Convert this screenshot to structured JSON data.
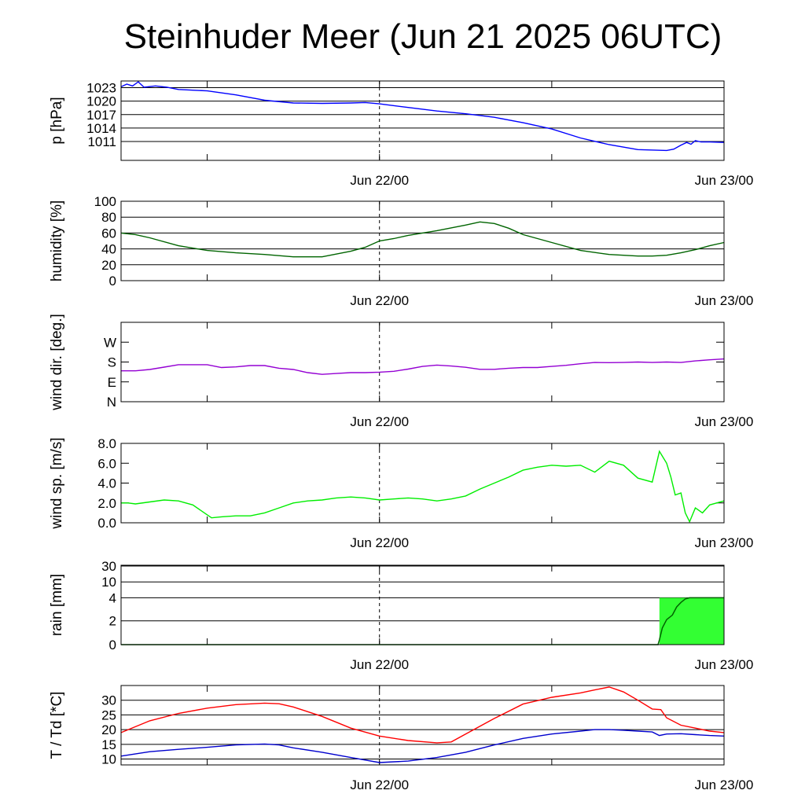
{
  "title": "Steinhuder Meer (Jun 21 2025 06UTC)",
  "x_axis": {
    "range_hours": [
      0,
      42
    ],
    "ticks": [
      {
        "hour": 6,
        "label": ""
      },
      {
        "hour": 18,
        "label": "Jun 22/00"
      },
      {
        "hour": 30,
        "label": ""
      },
      {
        "hour": 42,
        "label": "Jun 23/00"
      }
    ],
    "dashed_marker_hour": 18
  },
  "chart_data": [
    {
      "type": "line",
      "ylabel": "p [hPa]",
      "ylim": [
        1006.8,
        1024.5
      ],
      "ticks": [
        {
          "v": 1011,
          "label": "1011"
        },
        {
          "v": 1014,
          "label": "1014"
        },
        {
          "v": 1017,
          "label": "1017"
        },
        {
          "v": 1020,
          "label": "1020"
        },
        {
          "v": 1023,
          "label": "1023"
        }
      ],
      "grid": true,
      "series": [
        {
          "color": "#0000ff",
          "points": [
            [
              0,
              1023.2
            ],
            [
              0.4,
              1023.8
            ],
            [
              0.8,
              1023.4
            ],
            [
              1.2,
              1024.3
            ],
            [
              1.6,
              1023.1
            ],
            [
              2.4,
              1023.4
            ],
            [
              3.2,
              1023.1
            ],
            [
              4,
              1022.6
            ],
            [
              6,
              1022.3
            ],
            [
              8,
              1021.4
            ],
            [
              10,
              1020.2
            ],
            [
              12,
              1019.6
            ],
            [
              14,
              1019.5
            ],
            [
              16,
              1019.6
            ],
            [
              17,
              1019.7
            ],
            [
              18,
              1019.4
            ],
            [
              20,
              1018.6
            ],
            [
              22,
              1017.8
            ],
            [
              24,
              1017.2
            ],
            [
              26,
              1016.4
            ],
            [
              28,
              1015.2
            ],
            [
              30,
              1013.8
            ],
            [
              32,
              1011.8
            ],
            [
              34,
              1010.3
            ],
            [
              36,
              1009.2
            ],
            [
              38,
              1009.0
            ],
            [
              38.5,
              1009.3
            ],
            [
              39,
              1010.2
            ],
            [
              39.4,
              1010.8
            ],
            [
              39.7,
              1010.4
            ],
            [
              40,
              1011.2
            ],
            [
              40.4,
              1010.9
            ],
            [
              41,
              1010.9
            ],
            [
              42,
              1010.8
            ]
          ]
        }
      ]
    },
    {
      "type": "line",
      "ylabel": "humidity [%]",
      "ylim": [
        0,
        100
      ],
      "ticks": [
        {
          "v": 0,
          "label": "0"
        },
        {
          "v": 20,
          "label": "20"
        },
        {
          "v": 40,
          "label": "40"
        },
        {
          "v": 60,
          "label": "60"
        },
        {
          "v": 80,
          "label": "80"
        },
        {
          "v": 100,
          "label": "100"
        }
      ],
      "grid": true,
      "series": [
        {
          "color": "#006400",
          "points": [
            [
              0,
              60
            ],
            [
              1,
              58
            ],
            [
              2,
              54
            ],
            [
              4,
              44
            ],
            [
              6,
              38
            ],
            [
              8,
              35
            ],
            [
              10,
              33
            ],
            [
              12,
              30
            ],
            [
              14,
              30
            ],
            [
              16,
              37
            ],
            [
              17,
              42
            ],
            [
              18,
              50
            ],
            [
              19,
              53
            ],
            [
              20,
              57
            ],
            [
              22,
              63
            ],
            [
              24,
              70
            ],
            [
              25,
              74
            ],
            [
              26,
              72
            ],
            [
              27,
              66
            ],
            [
              28,
              58
            ],
            [
              30,
              48
            ],
            [
              32,
              38
            ],
            [
              34,
              33
            ],
            [
              36,
              31
            ],
            [
              37,
              31
            ],
            [
              38,
              32
            ],
            [
              39,
              35
            ],
            [
              40,
              39
            ],
            [
              41,
              44
            ],
            [
              42,
              48
            ],
            [
              42,
              48
            ]
          ]
        }
      ]
    },
    {
      "type": "line",
      "ylabel": "wind dir. [deg.]",
      "ylim": [
        0,
        360
      ],
      "ticks": [
        {
          "v": 0,
          "label": "N"
        },
        {
          "v": 90,
          "label": "E"
        },
        {
          "v": 180,
          "label": "S"
        },
        {
          "v": 270,
          "label": "W"
        }
      ],
      "grid": false,
      "series": [
        {
          "color": "#9400d3",
          "points": [
            [
              0,
              140
            ],
            [
              1,
              140
            ],
            [
              2,
              146
            ],
            [
              3,
              157
            ],
            [
              4,
              168
            ],
            [
              5,
              168
            ],
            [
              6,
              168
            ],
            [
              7,
              155
            ],
            [
              8,
              158
            ],
            [
              9,
              164
            ],
            [
              10,
              164
            ],
            [
              11,
              152
            ],
            [
              12,
              146
            ],
            [
              13,
              132
            ],
            [
              14,
              124
            ],
            [
              15,
              128
            ],
            [
              16,
              132
            ],
            [
              17,
              132
            ],
            [
              18,
              134
            ],
            [
              19,
              138
            ],
            [
              20,
              148
            ],
            [
              21,
              160
            ],
            [
              22,
              166
            ],
            [
              23,
              162
            ],
            [
              24,
              156
            ],
            [
              25,
              147
            ],
            [
              26,
              147
            ],
            [
              27,
              152
            ],
            [
              28,
              155
            ],
            [
              29,
              155
            ],
            [
              30,
              160
            ],
            [
              31,
              165
            ],
            [
              32,
              172
            ],
            [
              33,
              178
            ],
            [
              34,
              177
            ],
            [
              35,
              178
            ],
            [
              36,
              180
            ],
            [
              37,
              178
            ],
            [
              38,
              180
            ],
            [
              39,
              178
            ],
            [
              40,
              185
            ],
            [
              41,
              190
            ],
            [
              42,
              194
            ]
          ]
        }
      ]
    },
    {
      "type": "line",
      "ylabel": "wind sp. [m/s]",
      "ylim": [
        0,
        8.0
      ],
      "ticks": [
        {
          "v": 0,
          "label": "0.0"
        },
        {
          "v": 2,
          "label": "2.0"
        },
        {
          "v": 4,
          "label": "4.0"
        },
        {
          "v": 6,
          "label": "6.0"
        },
        {
          "v": 8,
          "label": "8.0"
        }
      ],
      "grid": false,
      "series": [
        {
          "color": "#00ee00",
          "points": [
            [
              0,
              2.0
            ],
            [
              0.5,
              2.0
            ],
            [
              1,
              1.9
            ],
            [
              2,
              2.1
            ],
            [
              3,
              2.3
            ],
            [
              4,
              2.2
            ],
            [
              5,
              1.8
            ],
            [
              6,
              0.8
            ],
            [
              6.3,
              0.5
            ],
            [
              7,
              0.6
            ],
            [
              8,
              0.7
            ],
            [
              9,
              0.7
            ],
            [
              10,
              1.0
            ],
            [
              11,
              1.5
            ],
            [
              12,
              2.0
            ],
            [
              13,
              2.2
            ],
            [
              14,
              2.3
            ],
            [
              15,
              2.5
            ],
            [
              16,
              2.6
            ],
            [
              17,
              2.5
            ],
            [
              18,
              2.3
            ],
            [
              19,
              2.4
            ],
            [
              20,
              2.5
            ],
            [
              21,
              2.4
            ],
            [
              22,
              2.2
            ],
            [
              23,
              2.4
            ],
            [
              24,
              2.7
            ],
            [
              25,
              3.4
            ],
            [
              26,
              4.0
            ],
            [
              27,
              4.6
            ],
            [
              28,
              5.3
            ],
            [
              29,
              5.6
            ],
            [
              30,
              5.8
            ],
            [
              31,
              5.7
            ],
            [
              32,
              5.8
            ],
            [
              33,
              5.1
            ],
            [
              34,
              6.2
            ],
            [
              35,
              5.8
            ],
            [
              36,
              4.5
            ],
            [
              37,
              4.1
            ],
            [
              37.5,
              7.2
            ],
            [
              38,
              6.0
            ],
            [
              38.3,
              4.6
            ],
            [
              38.6,
              2.8
            ],
            [
              39,
              3.0
            ],
            [
              39.3,
              1.0
            ],
            [
              39.6,
              0.1
            ],
            [
              40,
              1.5
            ],
            [
              40.5,
              1.0
            ],
            [
              41,
              1.8
            ],
            [
              42,
              2.2
            ]
          ]
        }
      ]
    },
    {
      "type": "area",
      "ylabel": "rain [mm]",
      "ticks": [
        {
          "v": 0,
          "label": "0"
        },
        {
          "v": 2,
          "label": "2"
        },
        {
          "v": 4,
          "label": "4"
        },
        {
          "v": 10,
          "label": "10"
        },
        {
          "v": 30,
          "label": "30"
        }
      ],
      "grid": true,
      "series": [
        {
          "color": "#33ff33",
          "fill_start_hour": 37.5,
          "points": [
            [
              0,
              0
            ],
            [
              37.4,
              0
            ],
            [
              37.5,
              0.4
            ],
            [
              37.7,
              1.4
            ],
            [
              38,
              2.1
            ],
            [
              38.4,
              2.5
            ],
            [
              38.7,
              3.2
            ],
            [
              39,
              3.6
            ],
            [
              39.3,
              3.9
            ],
            [
              39.6,
              4.0
            ],
            [
              42,
              4.0
            ]
          ]
        }
      ]
    },
    {
      "type": "line",
      "ylabel": "T / Td [*C]",
      "ylim": [
        8,
        35
      ],
      "ticks": [
        {
          "v": 10,
          "label": "10"
        },
        {
          "v": 15,
          "label": "15"
        },
        {
          "v": 20,
          "label": "20"
        },
        {
          "v": 25,
          "label": "25"
        },
        {
          "v": 30,
          "label": "30"
        }
      ],
      "grid": true,
      "series": [
        {
          "color": "#ff0000",
          "points": [
            [
              0,
              19
            ],
            [
              2,
              23
            ],
            [
              4,
              25.5
            ],
            [
              6,
              27.3
            ],
            [
              8,
              28.5
            ],
            [
              10,
              29
            ],
            [
              11,
              28.8
            ],
            [
              12,
              27.7
            ],
            [
              14,
              24.5
            ],
            [
              16,
              20.5
            ],
            [
              18,
              17.8
            ],
            [
              20,
              16.3
            ],
            [
              22,
              15.5
            ],
            [
              23,
              15.8
            ],
            [
              24,
              18.5
            ],
            [
              26,
              23.8
            ],
            [
              28,
              28.7
            ],
            [
              30,
              31
            ],
            [
              32,
              32.5
            ],
            [
              33,
              33.5
            ],
            [
              34,
              34.5
            ],
            [
              35,
              32.8
            ],
            [
              36,
              30
            ],
            [
              37,
              27
            ],
            [
              37.6,
              26.8
            ],
            [
              38,
              24
            ],
            [
              39,
              21.5
            ],
            [
              40,
              20.5
            ],
            [
              41,
              19.5
            ],
            [
              42,
              19
            ]
          ]
        },
        {
          "color": "#0000cd",
          "points": [
            [
              0,
              11
            ],
            [
              2,
              12.5
            ],
            [
              4,
              13.3
            ],
            [
              6,
              14
            ],
            [
              8,
              14.8
            ],
            [
              10,
              15.1
            ],
            [
              11,
              14.8
            ],
            [
              12,
              13.8
            ],
            [
              14,
              12.3
            ],
            [
              16,
              10.5
            ],
            [
              18,
              8.8
            ],
            [
              20,
              9.3
            ],
            [
              22,
              10.5
            ],
            [
              24,
              12.3
            ],
            [
              26,
              14.8
            ],
            [
              28,
              17
            ],
            [
              30,
              18.5
            ],
            [
              32,
              19.5
            ],
            [
              33,
              20
            ],
            [
              34,
              20
            ],
            [
              35,
              19.8
            ],
            [
              36,
              19.5
            ],
            [
              37,
              19.2
            ],
            [
              37.5,
              18
            ],
            [
              38,
              18.5
            ],
            [
              39,
              18.6
            ],
            [
              40,
              18.3
            ],
            [
              41,
              18
            ],
            [
              42,
              17.8
            ]
          ]
        }
      ]
    }
  ]
}
